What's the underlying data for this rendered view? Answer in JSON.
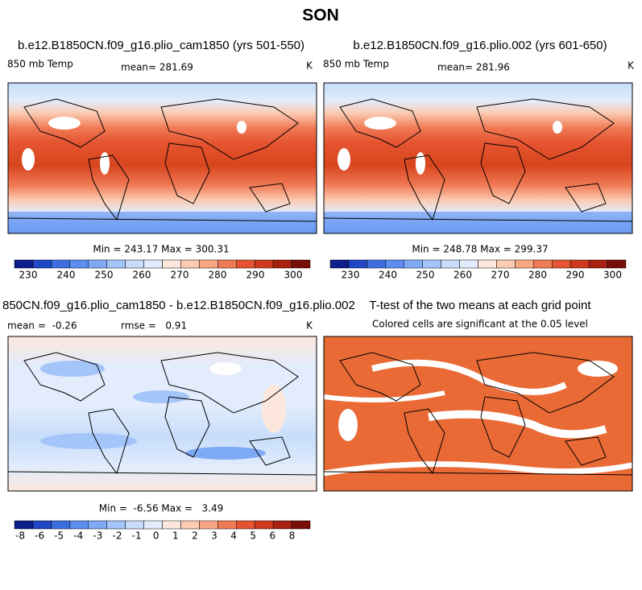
{
  "title": "SON",
  "panels": [
    {
      "title": "b.e12.B1850CN.f09_g16.plio_cam1850 (yrs 501-550)",
      "variable": "850 mb Temp",
      "mean": "mean= 281.69",
      "units": "K",
      "stats": "Min = 243.17 Max = 300.31",
      "colorbar_labels": [
        "230",
        "240",
        "250",
        "260",
        "270",
        "280",
        "290",
        "300"
      ]
    },
    {
      "title": "b.e12.B1850CN.f09_g16.plio.002 (yrs 601-650)",
      "variable": "850 mb Temp",
      "mean": "mean= 281.96",
      "units": "K",
      "stats": "Min = 248.78 Max = 299.37",
      "colorbar_labels": [
        "230",
        "240",
        "250",
        "260",
        "270",
        "280",
        "290",
        "300"
      ]
    },
    {
      "title": "850CN.f09_g16.plio_cam1850 - b.e12.B1850CN.f09_g16.plio.002",
      "mean": "mean =  -0.26",
      "rmse": "rmse =   0.91",
      "units": "K",
      "stats": "Min =  -6.56 Max =   3.49",
      "colorbar_labels": [
        "-8",
        "-6",
        "-5",
        "-4",
        "-3",
        "-2",
        "-1",
        "0",
        "1",
        "2",
        "3",
        "4",
        "5",
        "6",
        "8"
      ]
    },
    {
      "title": "T-test of the two means at each grid point",
      "subtitle": "Colored cells are significant at the 0.05 level"
    }
  ]
}
